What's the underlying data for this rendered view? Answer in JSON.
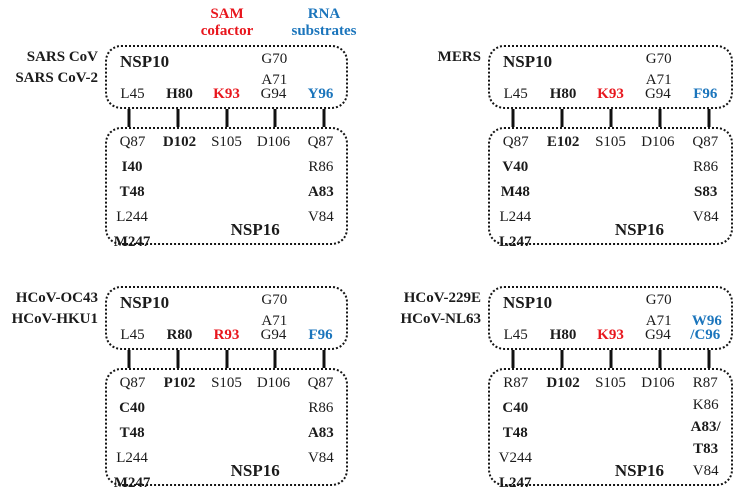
{
  "colors": {
    "sam_red": "#e8161d",
    "rna_blue": "#1b75bc",
    "ink": "#1b1b1b"
  },
  "headers": {
    "sam_line1": "SAM",
    "sam_line2": "cofactor",
    "rna_line1": "RNA",
    "rna_line2": "substrates"
  },
  "panels": [
    {
      "label_lines": [
        "SARS CoV",
        "SARS CoV-2"
      ],
      "nsp10": {
        "title": "NSP10",
        "stack_col4": [
          "G70",
          "A71"
        ],
        "bottom": [
          "L45",
          "H80",
          "K93",
          "G94",
          "Y96"
        ]
      },
      "nsp16": {
        "title": "NSP16",
        "top": [
          "Q87",
          "D102",
          "S105",
          "D106",
          "Q87"
        ],
        "left": [
          "I40",
          "T48",
          "L244",
          "M247"
        ],
        "right": [
          "R86",
          "A83",
          "V84"
        ]
      }
    },
    {
      "label_lines": [
        "MERS"
      ],
      "nsp10": {
        "title": "NSP10",
        "stack_col4": [
          "G70",
          "A71"
        ],
        "bottom": [
          "L45",
          "H80",
          "K93",
          "G94",
          "F96"
        ]
      },
      "nsp16": {
        "title": "NSP16",
        "top": [
          "Q87",
          "E102",
          "S105",
          "D106",
          "Q87"
        ],
        "left": [
          "V40",
          "M48",
          "L244",
          "L247"
        ],
        "right": [
          "R86",
          "S83",
          "V84"
        ]
      }
    },
    {
      "label_lines": [
        "HCoV-OC43",
        "HCoV-HKU1"
      ],
      "nsp10": {
        "title": "NSP10",
        "stack_col4": [
          "G70",
          "A71"
        ],
        "bottom": [
          "L45",
          "R80",
          "R93",
          "G94",
          "F96"
        ]
      },
      "nsp16": {
        "title": "NSP16",
        "top": [
          "Q87",
          "P102",
          "S105",
          "D106",
          "Q87"
        ],
        "left": [
          "C40",
          "T48",
          "L244",
          "M247"
        ],
        "right": [
          "R86",
          "A83",
          "V84"
        ]
      }
    },
    {
      "label_lines": [
        "HCoV-229E",
        "HCoV-NL63"
      ],
      "nsp10": {
        "title": "NSP10",
        "stack_col4": [
          "G70",
          "A71"
        ],
        "stack_col5": [
          "W96"
        ],
        "bottom": [
          "L45",
          "H80",
          "K93",
          "G94",
          "/C96"
        ]
      },
      "nsp16": {
        "title": "NSP16",
        "top": [
          "R87",
          "D102",
          "S105",
          "D106",
          "R87"
        ],
        "left": [
          "C40",
          "T48",
          "V244",
          "L247"
        ],
        "right": [
          "K86",
          "A83/",
          "T83",
          "V84"
        ]
      }
    }
  ]
}
